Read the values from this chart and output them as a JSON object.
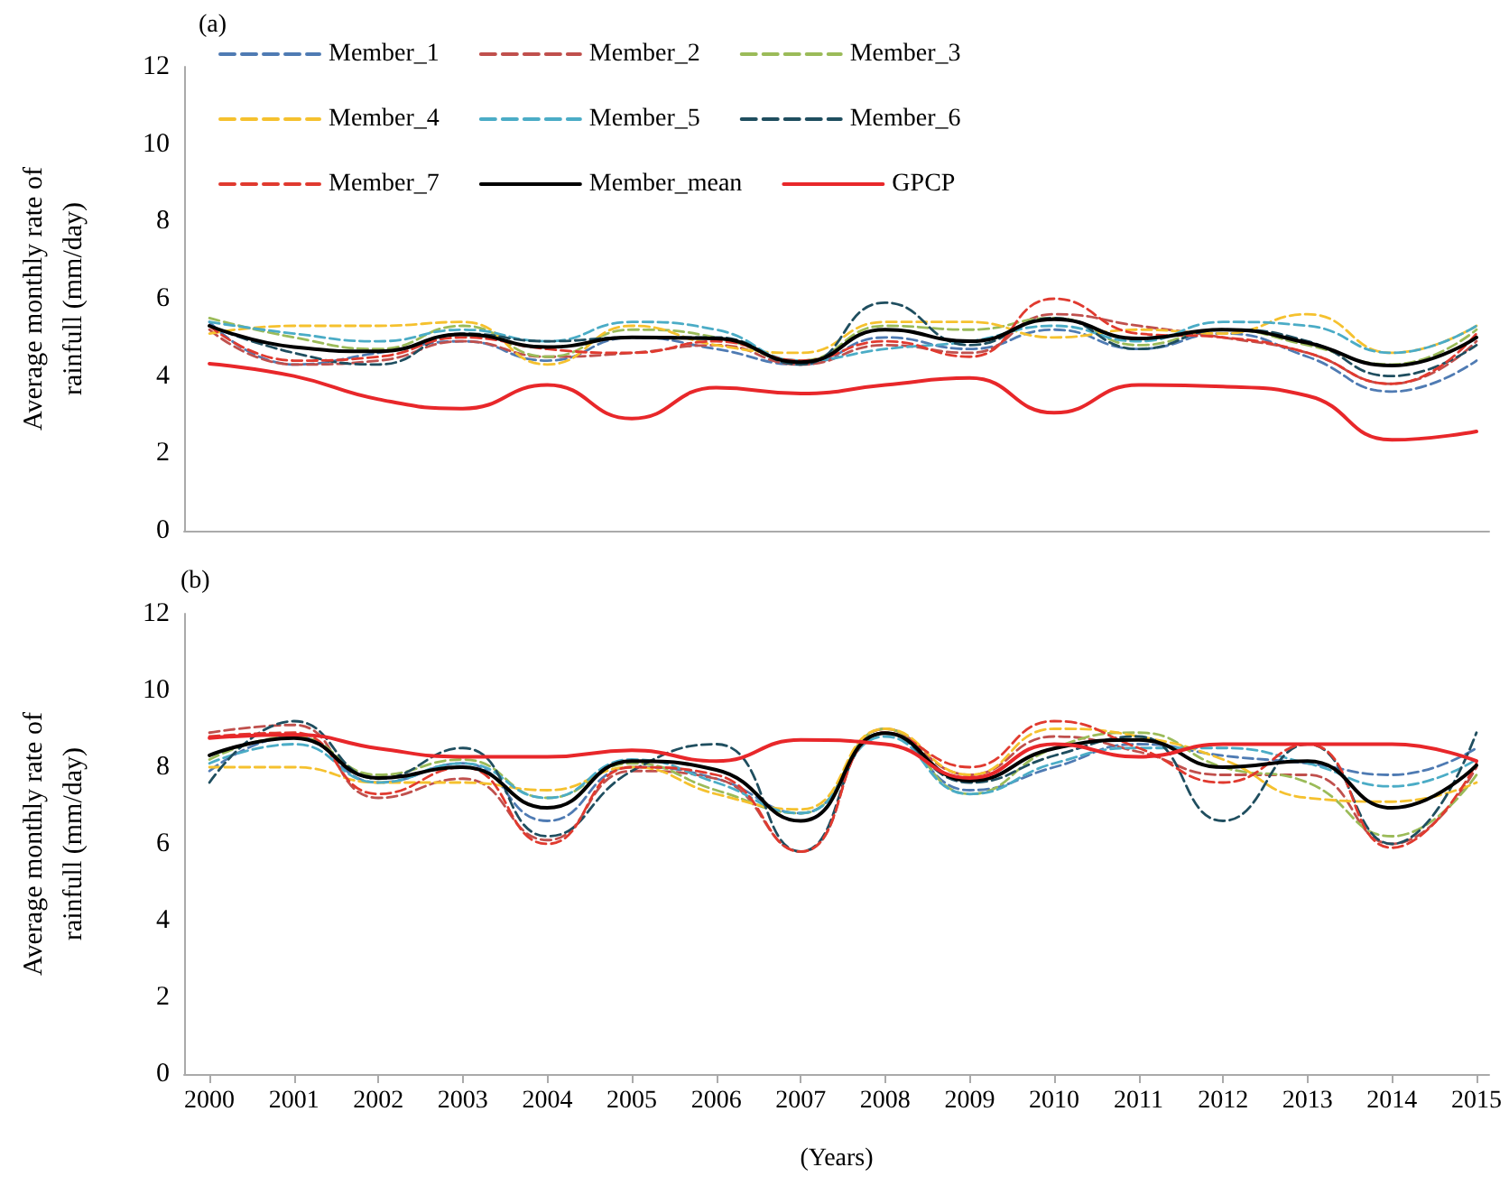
{
  "chart_data": [
    {
      "type": "line",
      "title": "(a)",
      "ylabel": "Average monthly rate of\nrainfull (mm/day)",
      "x": [
        2000,
        2001,
        2002,
        2003,
        2004,
        2005,
        2006,
        2007,
        2008,
        2009,
        2010,
        2011,
        2012,
        2013,
        2014,
        2015
      ],
      "xlim": [
        1999.7,
        2015.15
      ],
      "xticks": [
        2000,
        2001,
        2002,
        2003,
        2004,
        2005,
        2006,
        2007,
        2008,
        2009,
        2010,
        2011,
        2012,
        2013,
        2014,
        2015
      ],
      "ylim": [
        0,
        12
      ],
      "yticks": [
        0,
        2,
        4,
        6,
        8,
        10,
        12
      ],
      "tick_labels": "y",
      "grid": false,
      "legend": "top",
      "marker": "none",
      "series": [
        {
          "name": "Member_1",
          "color": "#4f7bb3",
          "line_style": "dashed",
          "values": [
            5.4,
            4.3,
            4.6,
            4.9,
            4.4,
            5.0,
            4.7,
            4.3,
            5.0,
            4.7,
            5.2,
            4.7,
            5.1,
            4.5,
            3.6,
            4.4
          ]
        },
        {
          "name": "Member_2",
          "color": "#c0504d",
          "line_style": "dashed",
          "values": [
            5.2,
            4.3,
            4.4,
            4.9,
            4.5,
            4.6,
            4.8,
            4.3,
            4.8,
            4.6,
            5.6,
            5.3,
            5.0,
            4.6,
            3.8,
            4.9
          ]
        },
        {
          "name": "Member_3",
          "color": "#9bbb59",
          "line_style": "dashed",
          "values": [
            5.5,
            5.0,
            4.7,
            5.3,
            4.5,
            5.2,
            5.0,
            4.4,
            5.3,
            5.2,
            5.5,
            4.8,
            5.2,
            4.8,
            4.3,
            5.2
          ]
        },
        {
          "name": "Member_4",
          "color": "#f5c12e",
          "line_style": "dashed",
          "values": [
            5.1,
            5.3,
            5.3,
            5.4,
            4.3,
            5.3,
            4.8,
            4.6,
            5.4,
            5.4,
            5.0,
            5.2,
            5.1,
            5.6,
            4.6,
            5.3
          ]
        },
        {
          "name": "Member_5",
          "color": "#4bacc6",
          "line_style": "dashed",
          "values": [
            5.4,
            5.1,
            4.9,
            5.2,
            4.9,
            5.4,
            5.2,
            4.4,
            4.7,
            4.9,
            5.3,
            4.9,
            5.4,
            5.3,
            4.6,
            5.3
          ]
        },
        {
          "name": "Member_6",
          "color": "#1f4e5f",
          "line_style": "dashed",
          "values": [
            5.3,
            4.6,
            4.3,
            5.1,
            4.9,
            5.0,
            5.0,
            4.3,
            5.9,
            4.8,
            5.5,
            4.7,
            5.2,
            4.9,
            4.0,
            4.8
          ]
        },
        {
          "name": "Member_7",
          "color": "#e03a2f",
          "line_style": "dashed",
          "values": [
            5.3,
            4.4,
            4.5,
            5.0,
            4.7,
            4.6,
            4.9,
            4.4,
            4.9,
            4.5,
            6.0,
            5.1,
            5.0,
            4.6,
            3.8,
            5.1
          ]
        },
        {
          "name": "Member_mean",
          "color": "#000000",
          "line_style": "solid",
          "values": [
            5.3,
            4.75,
            4.64,
            5.08,
            4.75,
            5.0,
            4.97,
            4.36,
            5.2,
            4.9,
            5.47,
            4.97,
            5.2,
            4.86,
            4.27,
            5.0
          ]
        },
        {
          "name": "GPCP",
          "color": "#e8272a",
          "line_style": "solid",
          "values": [
            4.32,
            4.0,
            3.4,
            3.16,
            3.77,
            2.9,
            3.7,
            3.55,
            3.77,
            3.95,
            3.05,
            3.77,
            3.73,
            3.49,
            2.35,
            2.57
          ]
        }
      ]
    },
    {
      "type": "line",
      "title": "(b)",
      "ylabel": "Average monthly rate of\nrainfull (mm/day)",
      "xlabel": "(Years)",
      "x": [
        2000,
        2001,
        2002,
        2003,
        2004,
        2005,
        2006,
        2007,
        2008,
        2009,
        2010,
        2011,
        2012,
        2013,
        2014,
        2015
      ],
      "xlim": [
        1999.7,
        2015.15
      ],
      "xticks": [
        2000,
        2001,
        2002,
        2003,
        2004,
        2005,
        2006,
        2007,
        2008,
        2009,
        2010,
        2011,
        2012,
        2013,
        2014,
        2015
      ],
      "ylim": [
        0,
        12
      ],
      "yticks": [
        0,
        2,
        4,
        6,
        8,
        10,
        12
      ],
      "grid": false,
      "legend": false,
      "marker": "none",
      "series": [
        {
          "color": "#4f7bb3",
          "line_style": "dashed",
          "values": [
            7.9,
            8.8,
            7.6,
            8.1,
            6.6,
            8.0,
            7.7,
            6.8,
            8.9,
            7.4,
            8.0,
            8.6,
            8.3,
            8.1,
            7.8,
            8.5
          ]
        },
        {
          "color": "#c0504d",
          "line_style": "dashed",
          "values": [
            8.9,
            9.1,
            7.2,
            7.7,
            6.1,
            7.9,
            7.7,
            5.8,
            9.0,
            7.8,
            8.8,
            8.4,
            7.8,
            7.8,
            6.0,
            8.0
          ]
        },
        {
          "color": "#9bbb59",
          "line_style": "dashed",
          "values": [
            8.2,
            8.8,
            7.8,
            8.2,
            7.2,
            8.1,
            7.4,
            6.8,
            9.0,
            7.3,
            8.5,
            8.9,
            8.0,
            7.6,
            6.2,
            7.8
          ]
        },
        {
          "color": "#f5c12e",
          "line_style": "dashed",
          "values": [
            8.0,
            8.0,
            7.6,
            7.6,
            7.4,
            8.0,
            7.3,
            6.9,
            9.0,
            7.8,
            9.0,
            8.8,
            8.2,
            7.2,
            7.1,
            7.6
          ]
        },
        {
          "color": "#4bacc6",
          "line_style": "dashed",
          "values": [
            8.1,
            8.6,
            7.6,
            8.1,
            7.2,
            8.2,
            7.6,
            6.8,
            8.8,
            7.3,
            8.1,
            8.5,
            8.5,
            8.1,
            7.5,
            8.2
          ]
        },
        {
          "color": "#1f4e5f",
          "line_style": "dashed",
          "values": [
            7.6,
            9.2,
            7.7,
            8.5,
            6.2,
            7.9,
            8.6,
            5.8,
            8.9,
            7.6,
            8.3,
            8.8,
            6.6,
            8.6,
            6.0,
            8.9
          ]
        },
        {
          "color": "#e03a2f",
          "line_style": "dashed",
          "values": [
            8.8,
            8.9,
            7.3,
            8.0,
            6.0,
            8.0,
            7.8,
            5.8,
            8.9,
            8.0,
            9.2,
            8.5,
            7.6,
            8.6,
            5.9,
            8.1
          ]
        },
        {
          "color": "#000000",
          "line_style": "solid",
          "values": [
            8.31,
            8.76,
            7.72,
            8.0,
            6.94,
            8.16,
            7.93,
            6.6,
            8.89,
            7.65,
            8.49,
            8.71,
            8.0,
            8.16,
            6.94,
            8.05
          ]
        },
        {
          "color": "#e8272a",
          "line_style": "solid",
          "values": [
            8.76,
            8.85,
            8.49,
            8.27,
            8.27,
            8.44,
            8.16,
            8.71,
            8.6,
            7.72,
            8.6,
            8.27,
            8.6,
            8.6,
            8.6,
            8.16
          ]
        }
      ]
    }
  ]
}
